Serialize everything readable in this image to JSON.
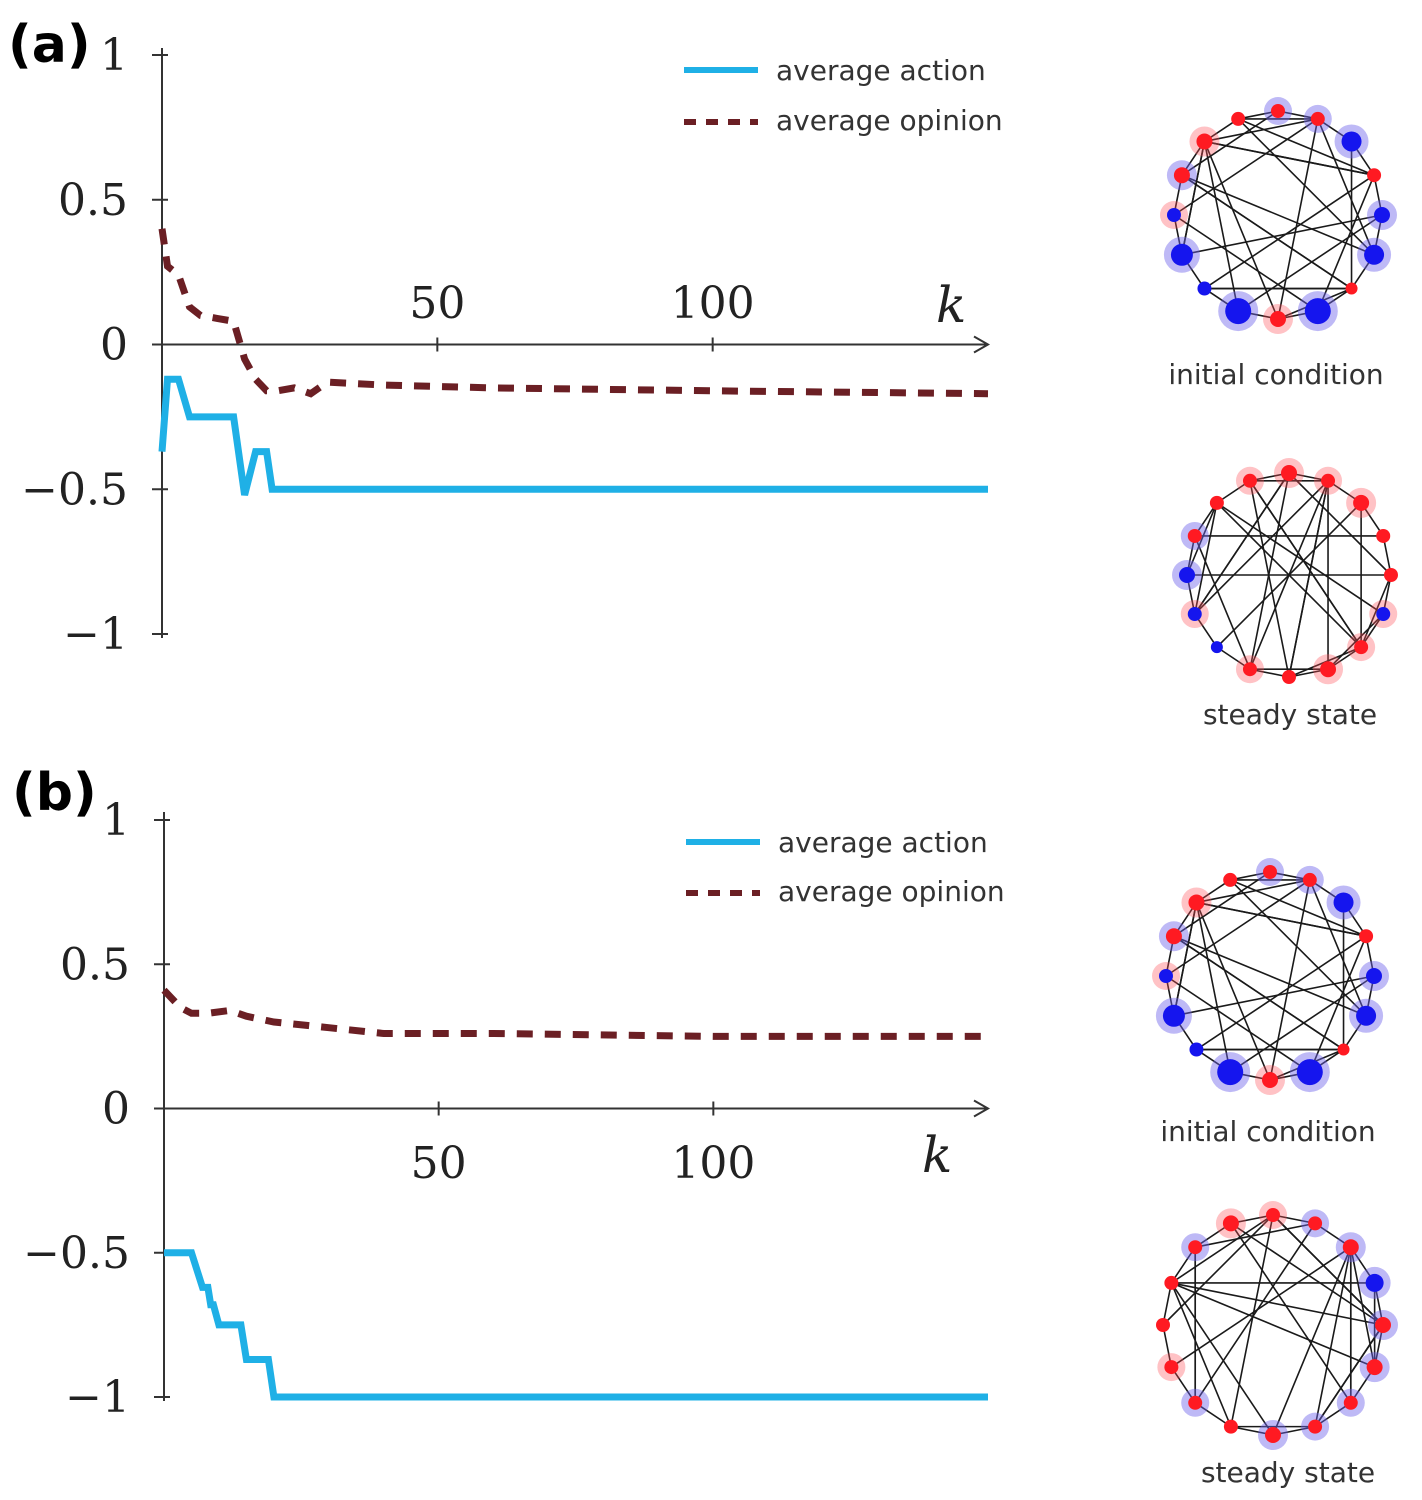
{
  "colors": {
    "action": "#1fb0e6",
    "opinion": "#6b1f24",
    "axis": "#333333",
    "red_node": "#ff1a22",
    "blue_node": "#1515ee",
    "edge": "#1a1a1a"
  },
  "chart_data": [
    {
      "panel": "(a)",
      "type": "line",
      "xlabel": "k",
      "xticks": [
        50,
        100
      ],
      "yticks": [
        1,
        0.5,
        0,
        -0.5,
        -1
      ],
      "ytick_labels": [
        "1",
        "0.5",
        "0",
        "−0.5",
        "−1"
      ],
      "xlim": [
        0,
        150
      ],
      "ylim": [
        -1,
        1
      ],
      "legend_position": "top-right",
      "series": [
        {
          "name": "average action",
          "style": "solid",
          "x": [
            0,
            1,
            3,
            5,
            7,
            13,
            15,
            17,
            19,
            20,
            22,
            25,
            40,
            80,
            150
          ],
          "y": [
            -0.37,
            -0.12,
            -0.12,
            -0.25,
            -0.25,
            -0.25,
            -0.52,
            -0.37,
            -0.37,
            -0.5,
            -0.5,
            -0.5,
            -0.5,
            -0.5,
            -0.5
          ]
        },
        {
          "name": "average opinion",
          "style": "dashed",
          "x": [
            0,
            1,
            3,
            5,
            7,
            10,
            13,
            15,
            17,
            19,
            21,
            24,
            27,
            30,
            40,
            60,
            100,
            150
          ],
          "y": [
            0.4,
            0.27,
            0.24,
            0.13,
            0.1,
            0.09,
            0.08,
            -0.05,
            -0.12,
            -0.16,
            -0.16,
            -0.15,
            -0.17,
            -0.13,
            -0.14,
            -0.15,
            -0.16,
            -0.17
          ]
        }
      ]
    },
    {
      "panel": "(b)",
      "type": "line",
      "xlabel": "k",
      "xticks": [
        50,
        100
      ],
      "yticks": [
        1,
        0.5,
        0,
        -0.5,
        -1
      ],
      "ytick_labels": [
        "1",
        "0.5",
        "0",
        "−0.5",
        "−1"
      ],
      "xlim": [
        0,
        150
      ],
      "ylim": [
        -1,
        1
      ],
      "legend_position": "top-right",
      "series": [
        {
          "name": "average action",
          "style": "solid",
          "x": [
            0,
            5,
            7,
            8,
            8.5,
            9,
            10,
            14,
            15,
            16,
            19,
            20,
            40,
            150
          ],
          "y": [
            -0.5,
            -0.5,
            -0.62,
            -0.62,
            -0.68,
            -0.68,
            -0.75,
            -0.75,
            -0.87,
            -0.87,
            -0.87,
            -1,
            -1,
            -1
          ]
        },
        {
          "name": "average opinion",
          "style": "dashed",
          "x": [
            0,
            3,
            5,
            8,
            12,
            15,
            20,
            30,
            40,
            60,
            100,
            150
          ],
          "y": [
            0.41,
            0.35,
            0.33,
            0.33,
            0.34,
            0.32,
            0.3,
            0.28,
            0.26,
            0.26,
            0.25,
            0.25
          ]
        }
      ]
    }
  ],
  "networks": {
    "a_initial": {
      "caption": "initial condition"
    },
    "a_steady": {
      "caption": "steady state"
    },
    "b_initial": {
      "caption": "initial condition"
    },
    "b_steady": {
      "caption": "steady state"
    }
  }
}
